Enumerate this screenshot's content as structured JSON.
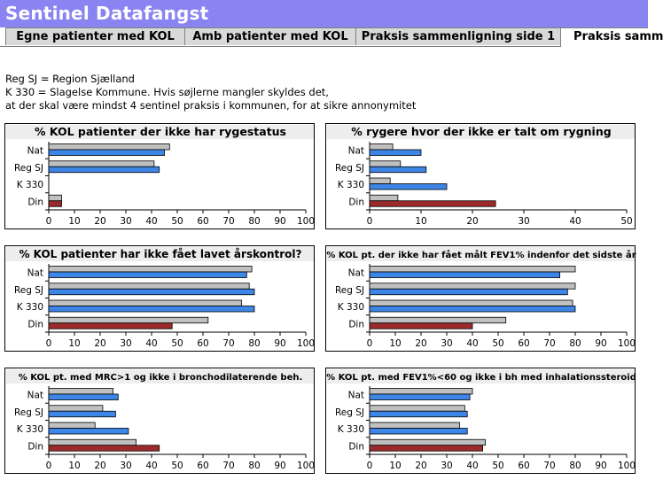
{
  "window": {
    "title": "Sentinel Datafangst"
  },
  "tabs": [
    {
      "label": "Egne patienter med KOL",
      "active": false
    },
    {
      "label": "Amb patienter med KOL",
      "active": false
    },
    {
      "label": "Praksis sammenligning side 1",
      "active": false
    },
    {
      "label": "Praksis samm",
      "active": true
    }
  ],
  "notes": {
    "line1": "Reg SJ = Region Sjælland",
    "line2": "K 330 = Slagelse Kommune. Hvis søjlerne mangler skyldes det,",
    "line3": "at der skal være mindst 4 sentinel praksis i kommunen, for at sikre annonymitet"
  },
  "colors": {
    "gray": "#c0c0c0",
    "blue": "#3d85e6",
    "red": "#9c2a2a",
    "title_bg": "#8a84f2"
  },
  "chart_data": [
    {
      "type": "bar",
      "orientation": "horizontal",
      "title": "% KOL patienter der ikke har rygestatus",
      "categories": [
        "Nat",
        "Reg SJ",
        "K 330",
        "Din"
      ],
      "xlim": [
        0,
        100
      ],
      "ticks": [
        0,
        10,
        20,
        30,
        40,
        50,
        60,
        70,
        80,
        90,
        100
      ],
      "reference": [
        47,
        41,
        null,
        5
      ],
      "values": [
        45,
        43,
        null,
        5
      ]
    },
    {
      "type": "bar",
      "orientation": "horizontal",
      "title": "% rygere hvor der ikke er talt om rygning",
      "categories": [
        "Nat",
        "Reg SJ",
        "K 330",
        "Din"
      ],
      "xlim": [
        0,
        50
      ],
      "ticks": [
        0,
        10,
        20,
        30,
        40,
        50
      ],
      "reference": [
        4.5,
        6,
        4,
        5.5
      ],
      "values": [
        10,
        11,
        15,
        24.5
      ]
    },
    {
      "type": "bar",
      "orientation": "horizontal",
      "title": "% KOL patienter har ikke fået lavet årskontrol?",
      "categories": [
        "Nat",
        "Reg SJ",
        "K 330",
        "Din"
      ],
      "xlim": [
        0,
        100
      ],
      "ticks": [
        0,
        10,
        20,
        30,
        40,
        50,
        60,
        70,
        80,
        90,
        100
      ],
      "reference": [
        79,
        78,
        75,
        62
      ],
      "values": [
        77,
        80,
        80,
        48
      ]
    },
    {
      "type": "bar",
      "orientation": "horizontal",
      "title": "% KOL pt. der ikke har fået målt FEV1% indenfor det sidste år",
      "categories": [
        "Nat",
        "Reg SJ",
        "K 330",
        "Din"
      ],
      "xlim": [
        0,
        100
      ],
      "ticks": [
        0,
        10,
        20,
        30,
        40,
        50,
        60,
        70,
        80,
        90,
        100
      ],
      "reference": [
        80,
        80,
        79,
        53
      ],
      "values": [
        74,
        77,
        80,
        40
      ]
    },
    {
      "type": "bar",
      "orientation": "horizontal",
      "title": "% KOL pt. med MRC>1 og ikke i bronchodilaterende beh.",
      "categories": [
        "Nat",
        "Reg SJ",
        "K 330",
        "Din"
      ],
      "xlim": [
        0,
        100
      ],
      "ticks": [
        0,
        10,
        20,
        30,
        40,
        50,
        60,
        70,
        80,
        90,
        100
      ],
      "reference": [
        25,
        21,
        18,
        34
      ],
      "values": [
        27,
        26,
        31,
        43
      ]
    },
    {
      "type": "bar",
      "orientation": "horizontal",
      "title": "% KOL pt. med FEV1%<60 og ikke i bh med inhalationssteroid",
      "categories": [
        "Nat",
        "Reg SJ",
        "K 330",
        "Din"
      ],
      "xlim": [
        0,
        100
      ],
      "ticks": [
        0,
        10,
        20,
        30,
        40,
        50,
        60,
        70,
        80,
        90,
        100
      ],
      "reference": [
        40,
        37,
        35,
        45
      ],
      "values": [
        39,
        38,
        38,
        44
      ]
    }
  ]
}
